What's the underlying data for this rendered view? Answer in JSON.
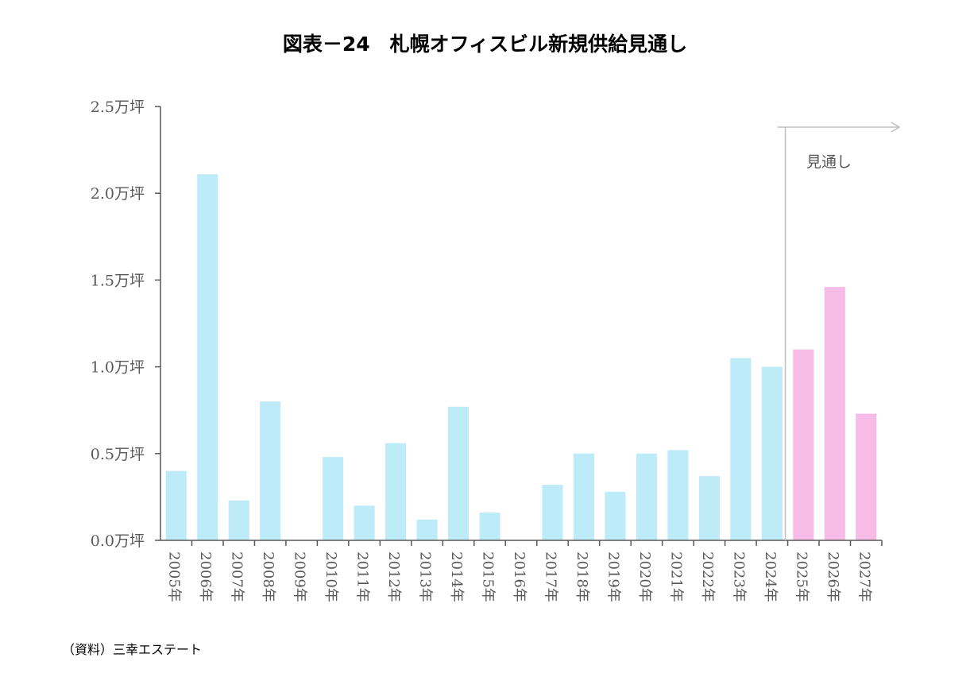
{
  "chart_data": {
    "type": "bar",
    "title": "図表－24　札幌オフィスビル新規供給見通し",
    "categories": [
      "2005年",
      "2006年",
      "2007年",
      "2008年",
      "2009年",
      "2010年",
      "2011年",
      "2012年",
      "2013年",
      "2014年",
      "2015年",
      "2016年",
      "2017年",
      "2018年",
      "2019年",
      "2020年",
      "2021年",
      "2022年",
      "2023年",
      "2024年",
      "2025年",
      "2026年",
      "2027年"
    ],
    "values": [
      0.4,
      2.11,
      0.23,
      0.8,
      0,
      0.48,
      0.2,
      0.56,
      0.12,
      0.77,
      0.16,
      0,
      0.32,
      0.5,
      0.28,
      0.5,
      0.52,
      0.37,
      1.05,
      1.0,
      1.1,
      1.46,
      0.73
    ],
    "forecast_from": "2025年",
    "ylim": [
      0,
      2.5
    ],
    "yticks": [
      "0.0万坪",
      "0.5万坪",
      "1.0万坪",
      "1.5万坪",
      "2.0万坪",
      "2.5万坪"
    ],
    "ytick_values": [
      0,
      0.5,
      1.0,
      1.5,
      2.0,
      2.5
    ],
    "annotation": "見通し",
    "grid": false,
    "colors": {
      "actual": "#bdebf8",
      "forecast": "#f7bbe8",
      "axis": "#595959",
      "annotation_line": "#bfbfbf"
    }
  },
  "source": "（資料）三幸エステート"
}
